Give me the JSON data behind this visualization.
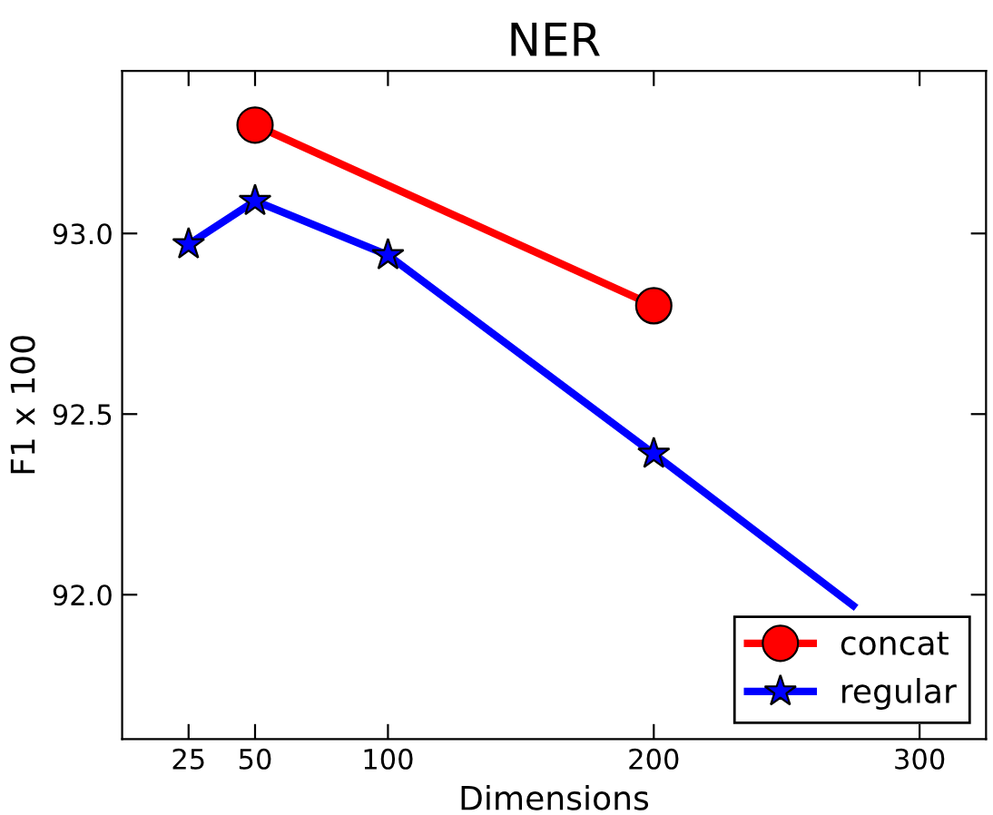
{
  "chart_data": {
    "type": "line",
    "title": "NER",
    "xlabel": "Dimensions",
    "ylabel": "F1 x 100",
    "series": [
      {
        "name": "concat",
        "color": "#ff0000",
        "x": [
          50,
          200
        ],
        "values": [
          93.3,
          92.8
        ],
        "marker": "circle"
      },
      {
        "name": "regular",
        "color": "#0000ff",
        "x": [
          25,
          50,
          100,
          200,
          275
        ],
        "values": [
          92.97,
          93.09,
          92.94,
          92.39,
          91.97
        ],
        "marker": "star"
      }
    ],
    "xlim": [
      0,
      325
    ],
    "xticks": [
      25,
      50,
      100,
      200,
      300
    ],
    "ylim": [
      91.6,
      93.45
    ],
    "yticks": [
      {
        "value": 92,
        "label": "92.0"
      },
      92.5,
      {
        "value": 93,
        "label": "93.0"
      }
    ],
    "legend": "bottom right",
    "grid": false,
    "line_style": "solid"
  }
}
